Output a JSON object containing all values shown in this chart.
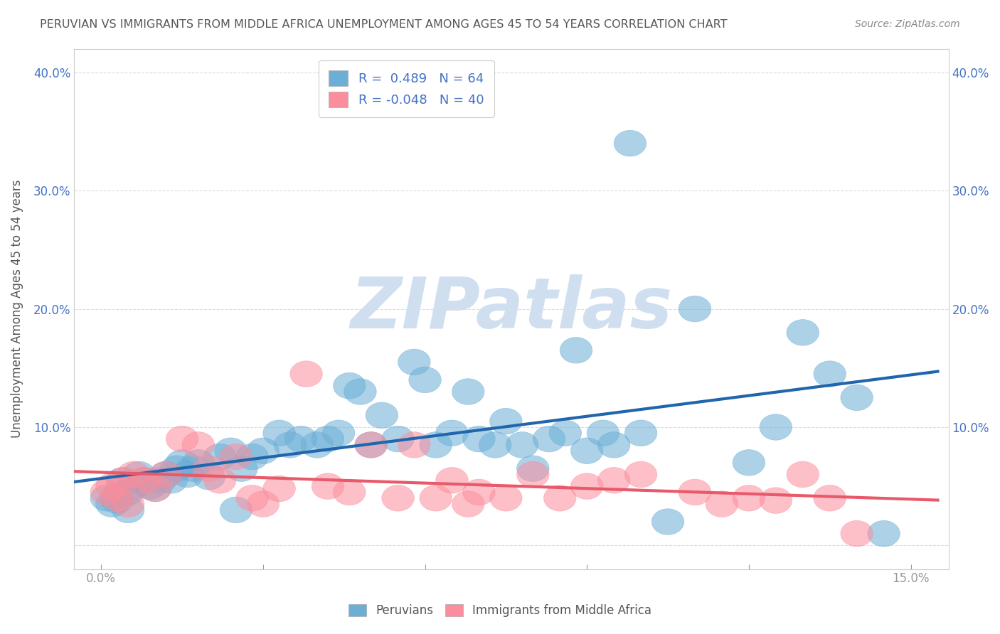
{
  "title": "PERUVIAN VS IMMIGRANTS FROM MIDDLE AFRICA UNEMPLOYMENT AMONG AGES 45 TO 54 YEARS CORRELATION CHART",
  "source": "Source: ZipAtlas.com",
  "xlabel": "",
  "ylabel": "Unemployment Among Ages 45 to 54 years",
  "xlim": [
    -0.005,
    0.157
  ],
  "ylim": [
    -0.02,
    0.42
  ],
  "xticks": [
    0.0,
    0.03,
    0.06,
    0.09,
    0.12,
    0.15
  ],
  "xticklabels": [
    "0.0%",
    "",
    "",
    "",
    "",
    "15.0%"
  ],
  "yticks": [
    0.0,
    0.1,
    0.2,
    0.3,
    0.4
  ],
  "yticklabels": [
    "",
    "10.0%",
    "20.0%",
    "30.0%",
    "40.0%"
  ],
  "blue_R": 0.489,
  "blue_N": 64,
  "pink_R": -0.048,
  "pink_N": 40,
  "blue_color": "#6baed6",
  "pink_color": "#fc8d9c",
  "blue_line_color": "#2166ac",
  "pink_line_color": "#e8596a",
  "title_color": "#555555",
  "axis_color": "#4472c4",
  "watermark_color": "#d0dff0",
  "blue_scatter_x": [
    0.001,
    0.002,
    0.003,
    0.003,
    0.004,
    0.005,
    0.005,
    0.006,
    0.007,
    0.008,
    0.009,
    0.01,
    0.011,
    0.012,
    0.013,
    0.014,
    0.015,
    0.016,
    0.017,
    0.018,
    0.02,
    0.022,
    0.024,
    0.025,
    0.026,
    0.028,
    0.03,
    0.033,
    0.035,
    0.037,
    0.04,
    0.042,
    0.044,
    0.046,
    0.048,
    0.05,
    0.052,
    0.055,
    0.058,
    0.06,
    0.062,
    0.065,
    0.068,
    0.07,
    0.073,
    0.075,
    0.078,
    0.08,
    0.083,
    0.086,
    0.088,
    0.09,
    0.093,
    0.095,
    0.098,
    0.1,
    0.105,
    0.11,
    0.12,
    0.125,
    0.13,
    0.135,
    0.14,
    0.145
  ],
  "blue_scatter_y": [
    0.04,
    0.035,
    0.038,
    0.042,
    0.055,
    0.03,
    0.045,
    0.05,
    0.06,
    0.055,
    0.05,
    0.048,
    0.055,
    0.06,
    0.055,
    0.065,
    0.07,
    0.06,
    0.065,
    0.07,
    0.058,
    0.075,
    0.08,
    0.03,
    0.065,
    0.075,
    0.08,
    0.095,
    0.085,
    0.09,
    0.085,
    0.09,
    0.095,
    0.135,
    0.13,
    0.085,
    0.11,
    0.09,
    0.155,
    0.14,
    0.085,
    0.095,
    0.13,
    0.09,
    0.085,
    0.105,
    0.085,
    0.065,
    0.09,
    0.095,
    0.165,
    0.08,
    0.095,
    0.085,
    0.34,
    0.095,
    0.02,
    0.2,
    0.07,
    0.1,
    0.18,
    0.145,
    0.125,
    0.01
  ],
  "pink_scatter_x": [
    0.001,
    0.002,
    0.003,
    0.004,
    0.005,
    0.006,
    0.008,
    0.01,
    0.012,
    0.015,
    0.018,
    0.02,
    0.022,
    0.025,
    0.028,
    0.03,
    0.033,
    0.038,
    0.042,
    0.046,
    0.05,
    0.055,
    0.058,
    0.062,
    0.065,
    0.068,
    0.07,
    0.075,
    0.08,
    0.085,
    0.09,
    0.095,
    0.1,
    0.11,
    0.115,
    0.12,
    0.125,
    0.13,
    0.135,
    0.14
  ],
  "pink_scatter_y": [
    0.045,
    0.05,
    0.04,
    0.055,
    0.035,
    0.06,
    0.055,
    0.048,
    0.06,
    0.09,
    0.085,
    0.065,
    0.055,
    0.075,
    0.04,
    0.035,
    0.048,
    0.145,
    0.05,
    0.045,
    0.085,
    0.04,
    0.085,
    0.04,
    0.055,
    0.035,
    0.045,
    0.04,
    0.06,
    0.04,
    0.05,
    0.055,
    0.06,
    0.045,
    0.035,
    0.04,
    0.038,
    0.06,
    0.04,
    0.01
  ],
  "legend_labels": [
    "Peruvians",
    "Immigrants from Middle Africa"
  ],
  "figsize": [
    14.06,
    8.92
  ],
  "dpi": 100
}
